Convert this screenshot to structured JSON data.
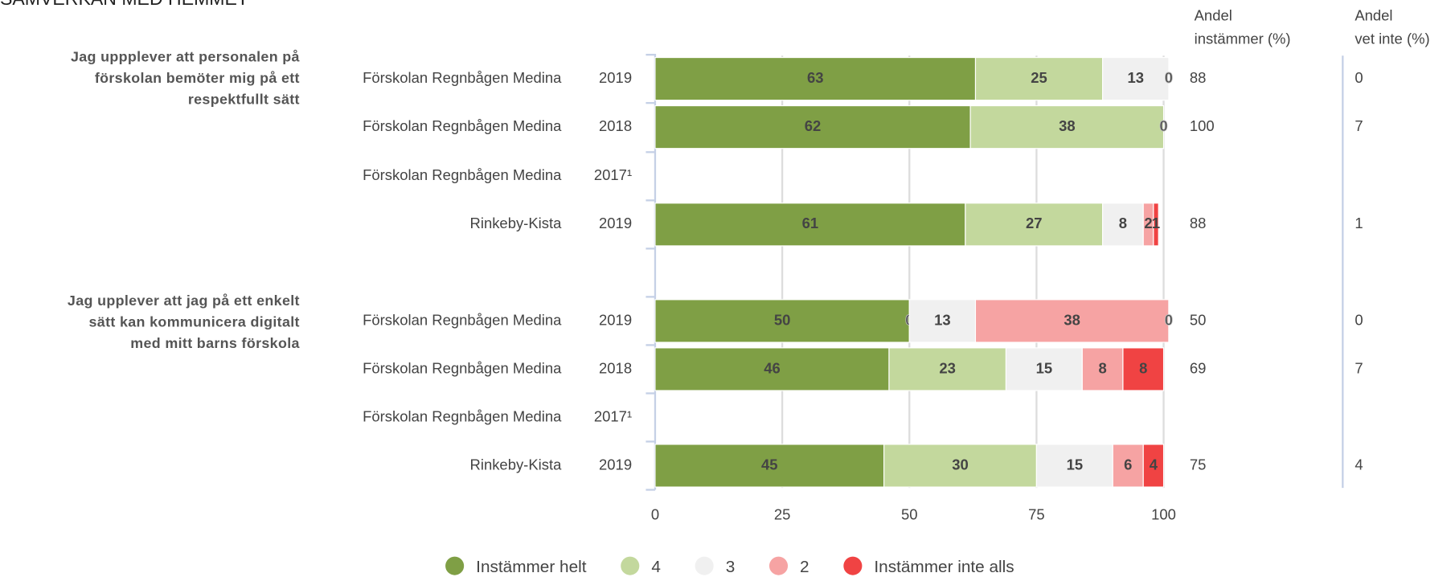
{
  "chart_data": {
    "type": "bar",
    "orientation": "horizontal",
    "stacked": true,
    "title": "SAMVERKAN MED HEMMET",
    "questions": [
      [
        "Jag uppplever att personalen på",
        "förskolan bemöter mig på ett",
        "respektfullt sätt"
      ],
      [
        "Jag upplever att jag på ett enkelt",
        "sätt kan kommunicera digitalt",
        "med mitt barns förskola"
      ]
    ],
    "categories": [
      "Förskolan Regnbågen Medina",
      "Förskolan Regnbågen Medina",
      "Förskolan Regnbågen Medina",
      "Rinkeby-Kista",
      "Förskolan Regnbågen Medina",
      "Förskolan Regnbågen Medina",
      "Förskolan Regnbågen Medina",
      "Rinkeby-Kista"
    ],
    "years": [
      "2019",
      "2018",
      "2017¹",
      "2019",
      "2019",
      "2018",
      "2017¹",
      "2019"
    ],
    "series": [
      {
        "name": "Instämmer helt",
        "color": "#7f9f45",
        "values": [
          63,
          62,
          null,
          61,
          50,
          46,
          null,
          45
        ]
      },
      {
        "name": "4",
        "color": "#c3d89d",
        "values": [
          25,
          38,
          null,
          27,
          0,
          23,
          null,
          30
        ]
      },
      {
        "name": "3",
        "color": "#f0f0f0",
        "values": [
          13,
          0,
          null,
          8,
          13,
          15,
          null,
          15
        ]
      },
      {
        "name": "2",
        "color": "#f6a3a3",
        "values": [
          0,
          null,
          null,
          2,
          38,
          8,
          null,
          6
        ]
      },
      {
        "name": "Instämmer inte alls",
        "color": "#f04343",
        "values": [
          null,
          null,
          null,
          1,
          0,
          8,
          null,
          4
        ]
      }
    ],
    "columns": [
      {
        "header": [
          "Andel",
          "instämmer (%)"
        ],
        "values": [
          88,
          100,
          null,
          88,
          50,
          69,
          null,
          75
        ]
      },
      {
        "header": [
          "Andel",
          "vet inte (%)"
        ],
        "values": [
          0,
          7,
          null,
          1,
          0,
          7,
          null,
          4
        ]
      }
    ],
    "xlim": [
      0,
      100
    ],
    "xticks": [
      0,
      25,
      50,
      75,
      100
    ],
    "grid": true
  }
}
